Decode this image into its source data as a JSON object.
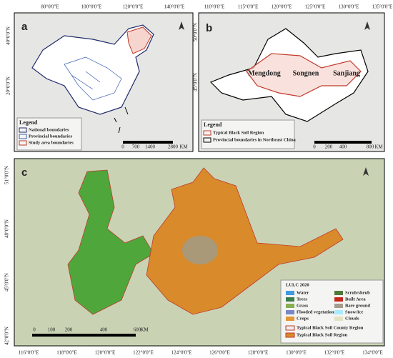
{
  "panel_a": {
    "label": "a",
    "top_labels": [
      "80°0'0\"E",
      "100°0'0\"E",
      "120°0'0\"E",
      "140°0'0\"E"
    ],
    "left_labels": [
      "40°0'0\"N",
      "20°0'0\"N"
    ],
    "legend": {
      "title": "Legend",
      "items": [
        {
          "name": "National boundaries",
          "color": "#1f2a6b"
        },
        {
          "name": "Provincial boundaries",
          "color": "#3a5fb0"
        },
        {
          "name": "Study area boundaries",
          "color": "#c0392b"
        }
      ]
    },
    "scale": [
      "0",
      "700",
      "1400",
      "2800",
      "KM"
    ]
  },
  "panel_b": {
    "label": "b",
    "top_labels": [
      "110°0'0\"E",
      "115°0'0\"E",
      "120°0'0\"E",
      "125°0'0\"E",
      "130°0'0\"E",
      "135°0'0\"E"
    ],
    "left_labels": [
      "50°0'0\"N",
      "45°0'0\"N"
    ],
    "regions": [
      "Mengdong",
      "Songnen",
      "Sanjiang"
    ],
    "legend": {
      "title": "Legend",
      "items": [
        {
          "name": "Typical Black Soil Region",
          "color": "#c0392b"
        },
        {
          "name": "Provincial boundaries in Northeast China",
          "color": "#000000"
        }
      ]
    },
    "scale": [
      "0",
      "200",
      "400",
      "800",
      "KM"
    ]
  },
  "panel_c": {
    "label": "c",
    "bottom_labels": [
      "116°0'0\"E",
      "118°0'0\"E",
      "120°0'0\"E",
      "122°0'0\"E",
      "124°0'0\"E",
      "126°0'0\"E",
      "128°0'0\"E",
      "130°0'0\"E",
      "132°0'0\"E",
      "134°0'0\"E"
    ],
    "left_labels": [
      "51°0'0\"N",
      "48°0'0\"N",
      "45°0'0\"N",
      "42°0'0\"N"
    ],
    "legend": {
      "title": "LULC 2020",
      "items": [
        {
          "name": "Water",
          "color": "#419bdf"
        },
        {
          "name": "Trees",
          "color": "#397d49"
        },
        {
          "name": "Grass",
          "color": "#88b053"
        },
        {
          "name": "Flooded vegetation",
          "color": "#7a87c6"
        },
        {
          "name": "Crops",
          "color": "#e49635"
        },
        {
          "name": "Scrub/shrub",
          "color": "#4f7a3a"
        },
        {
          "name": "Built Area",
          "color": "#c4281b"
        },
        {
          "name": "Bare ground",
          "color": "#a59b8f"
        },
        {
          "name": "Snow/Ice",
          "color": "#a8ebff"
        },
        {
          "name": "Clouds",
          "color": "#e3e2c3"
        }
      ],
      "extra": [
        "Typical Black Soil County Region",
        "Typical Black Soil Region"
      ]
    },
    "scale": [
      "0",
      "100",
      "200",
      "400",
      "600",
      "KM"
    ]
  }
}
